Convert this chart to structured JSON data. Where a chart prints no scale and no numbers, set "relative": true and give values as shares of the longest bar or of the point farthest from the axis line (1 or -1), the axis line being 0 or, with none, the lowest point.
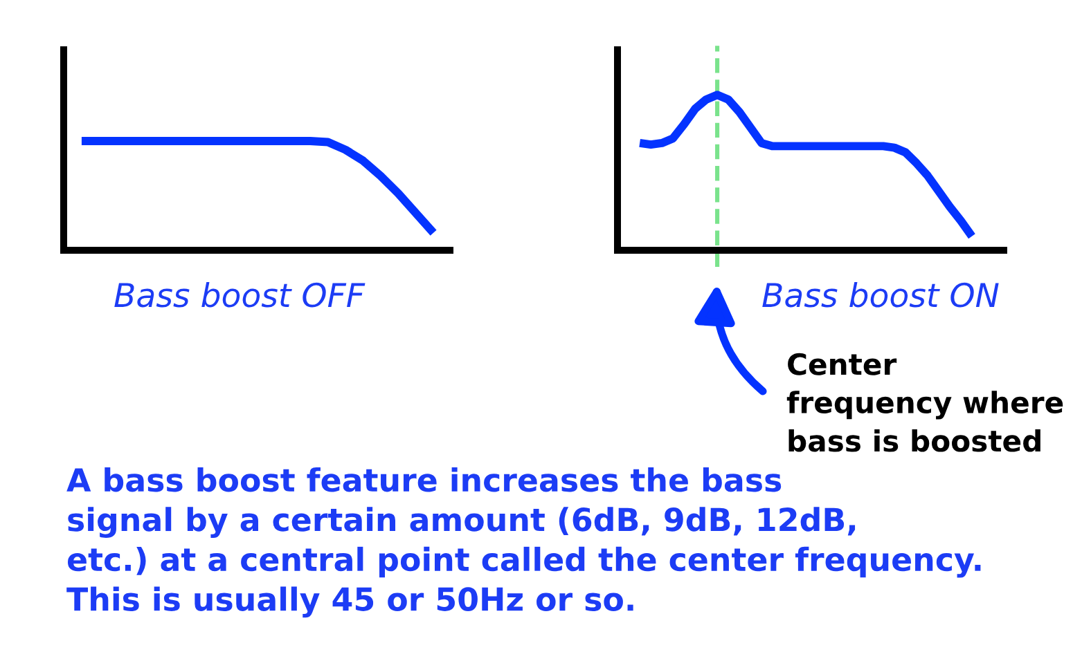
{
  "chart_data": [
    {
      "type": "line",
      "relative": true,
      "categories": [
        null,
        null,
        null,
        null,
        null,
        null,
        null,
        null,
        null,
        null,
        null,
        null,
        null,
        null,
        null,
        null,
        null,
        null,
        null,
        null,
        null
      ],
      "series": [
        {
          "color": "#0433ff",
          "values": [
            1,
            1,
            1,
            1,
            1,
            1,
            1,
            1,
            1,
            1,
            1,
            1,
            1,
            1,
            0.99,
            0.92,
            0.82,
            0.68,
            0.52,
            0.34,
            0.16
          ]
        }
      ],
      "xlabel": "Bass boost OFF",
      "annotations": [
        "A bass boost feature increases the bass\nsignal by a certain amount (6dB, 9dB, 12dB,\netc.) at a central point called the center frequency.\nThis is usually 45 or 50Hz or so."
      ]
    },
    {
      "type": "line",
      "relative": true,
      "categories": [
        null,
        null,
        null,
        null,
        null,
        null,
        null,
        null,
        null,
        null,
        null,
        null,
        null,
        null,
        null,
        null,
        null,
        null,
        null,
        null,
        null,
        null,
        null,
        null,
        null,
        null,
        null,
        null,
        null,
        null,
        null
      ],
      "series": [
        {
          "color": "#0433ff",
          "values": [
            0.69,
            0.68,
            0.69,
            0.72,
            0.81,
            0.91,
            0.97,
            1,
            0.97,
            0.89,
            0.79,
            0.69,
            0.67,
            0.67,
            0.67,
            0.67,
            0.67,
            0.67,
            0.67,
            0.67,
            0.67,
            0.67,
            0.67,
            0.66,
            0.63,
            0.56,
            0.48,
            0.38,
            0.28,
            0.19,
            0.09
          ]
        }
      ],
      "xlabel": "Bass boost ON",
      "annotations": [
        "Center\nfrequency where\nbass is boosted"
      ]
    }
  ]
}
